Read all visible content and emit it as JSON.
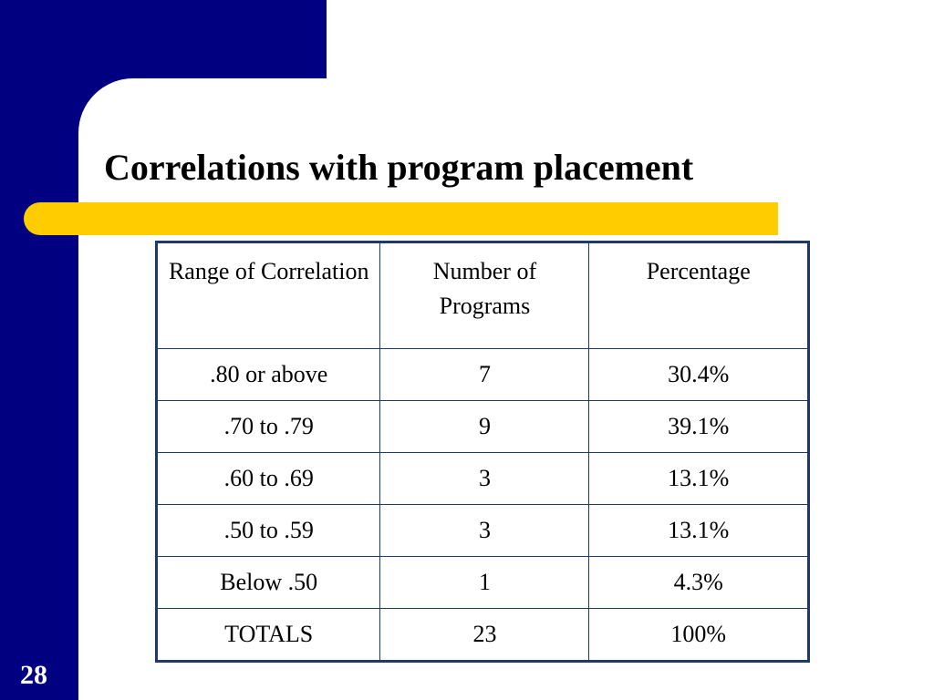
{
  "slide": {
    "title": "Correlations with program placement",
    "page_number": "28",
    "colors": {
      "background": "#ffffff",
      "frame_blue": "#000080",
      "accent_gold": "#FFCC00",
      "table_border": "#1F3A68"
    }
  },
  "table": {
    "headers": [
      "Range of Correlation",
      "Number of Programs",
      "Percentage"
    ],
    "rows": [
      [
        ".80 or above",
        "7",
        "30.4%"
      ],
      [
        ".70 to .79",
        "9",
        "39.1%"
      ],
      [
        ".60 to .69",
        "3",
        "13.1%"
      ],
      [
        ".50 to .59",
        "3",
        "13.1%"
      ],
      [
        "Below .50",
        "1",
        "4.3%"
      ],
      [
        "TOTALS",
        "23",
        "100%"
      ]
    ]
  }
}
